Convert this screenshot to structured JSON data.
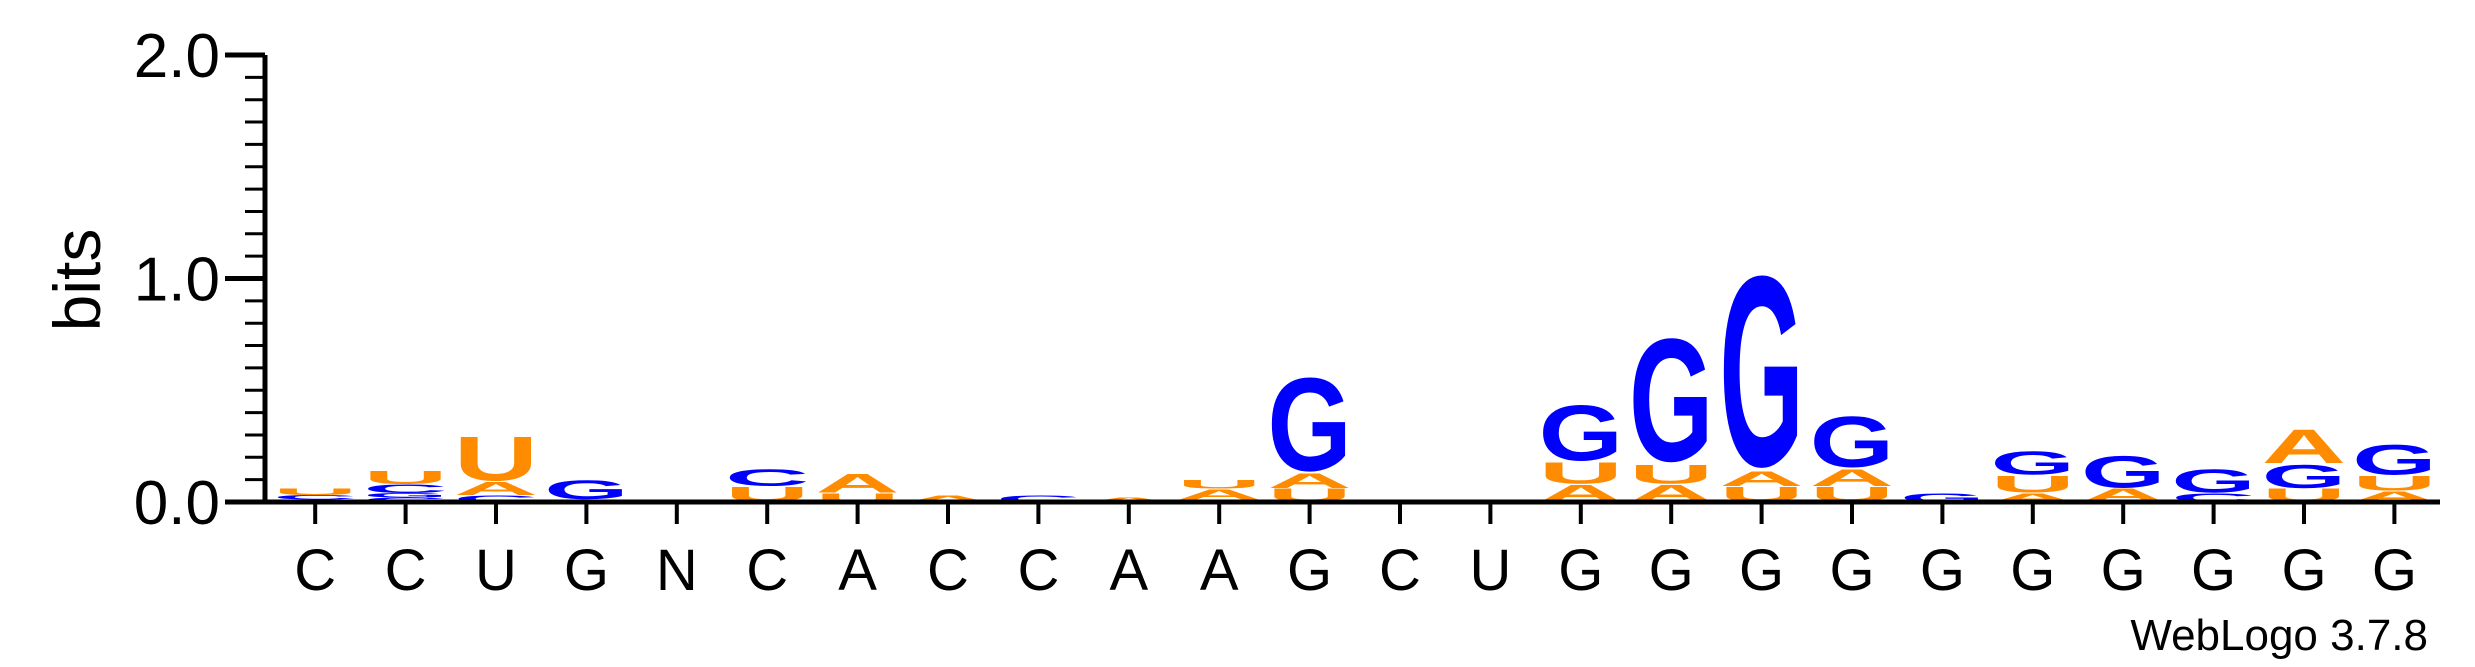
{
  "chart_data": {
    "type": "sequence-logo",
    "ylabel": "bits",
    "ylim": [
      0,
      2.0
    ],
    "yticks": [
      "0.0",
      "1.0",
      "2.0"
    ],
    "y_minor_step": 0.1,
    "xticks": [
      "C",
      "C",
      "U",
      "G",
      "N",
      "C",
      "A",
      "C",
      "C",
      "A",
      "A",
      "G",
      "C",
      "U",
      "G",
      "G",
      "G",
      "G",
      "G",
      "G",
      "G",
      "G",
      "G",
      "G"
    ],
    "colors": {
      "G": "#0000ff",
      "U": "#ff8c00",
      "A": "#ff8c00",
      "C": "#0000ff"
    },
    "positions": [
      [
        [
          "A",
          0.01
        ],
        [
          "C",
          0.02
        ],
        [
          "U",
          0.03
        ]
      ],
      [
        [
          "C",
          0.02
        ],
        [
          "G",
          0.02
        ],
        [
          "C",
          0.04
        ],
        [
          "U",
          0.06
        ]
      ],
      [
        [
          "C",
          0.03
        ],
        [
          "A",
          0.06
        ],
        [
          "U",
          0.21
        ]
      ],
      [
        [
          "A",
          0.01
        ],
        [
          "G",
          0.09
        ]
      ],
      [],
      [
        [
          "U",
          0.07
        ],
        [
          "C",
          0.08
        ]
      ],
      [
        [
          "U",
          0.04
        ],
        [
          "A",
          0.09
        ]
      ],
      [
        [
          "A",
          0.03
        ]
      ],
      [
        [
          "C",
          0.03
        ]
      ],
      [
        [
          "A",
          0.02
        ]
      ],
      [
        [
          "C",
          0.01
        ],
        [
          "A",
          0.05
        ],
        [
          "U",
          0.04
        ]
      ],
      [
        [
          "U",
          0.06
        ],
        [
          "A",
          0.07
        ],
        [
          "G",
          0.44
        ]
      ],
      [],
      [],
      [
        [
          "A",
          0.08
        ],
        [
          "U",
          0.1
        ],
        [
          "G",
          0.26
        ]
      ],
      [
        [
          "A",
          0.08
        ],
        [
          "U",
          0.09
        ],
        [
          "G",
          0.58
        ]
      ],
      [
        [
          "U",
          0.07
        ],
        [
          "A",
          0.07
        ],
        [
          "G",
          0.9
        ]
      ],
      [
        [
          "U",
          0.07
        ],
        [
          "A",
          0.08
        ],
        [
          "G",
          0.24
        ]
      ],
      [
        [
          "G",
          0.04
        ]
      ],
      [
        [
          "A",
          0.04
        ],
        [
          "U",
          0.08
        ],
        [
          "G",
          0.11
        ]
      ],
      [
        [
          "A",
          0.06
        ],
        [
          "G",
          0.15
        ]
      ],
      [
        [
          "C",
          0.04
        ],
        [
          "G",
          0.11
        ]
      ],
      [
        [
          "U",
          0.06
        ],
        [
          "G",
          0.11
        ],
        [
          "A",
          0.16
        ]
      ],
      [
        [
          "A",
          0.05
        ],
        [
          "U",
          0.07
        ],
        [
          "G",
          0.14
        ]
      ]
    ]
  },
  "credit": "WebLogo 3.7.8"
}
